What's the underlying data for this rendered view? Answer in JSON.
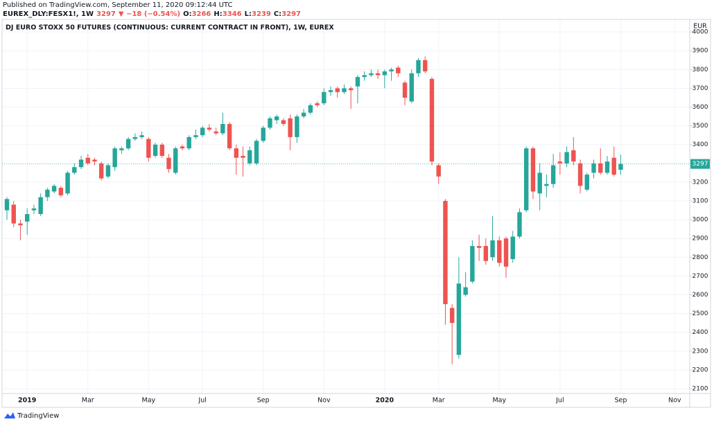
{
  "header": {
    "published": "Published on TradingView.com, September 11, 2020 09:12:44 UTC",
    "symbol": "EUREX_DLY:FESX1!, 1W",
    "last": 3297,
    "change_text": "▼ −18 (−0.54%)",
    "ohlc_labels": [
      "O:",
      "H:",
      "L:",
      "C:"
    ],
    "ohlc_values": [
      3266,
      3346,
      3239,
      3297
    ]
  },
  "chart_data": {
    "type": "candlestick",
    "title": "DJ EURO STOXX 50 FUTURES (CONTINUOUS: CURRENT CONTRACT IN FRONT), 1W, EUREX",
    "currency": "EUR",
    "last_price": 3297,
    "categories": [
      null,
      null,
      null,
      "2019",
      null,
      null,
      null,
      null,
      null,
      null,
      null,
      null,
      "Mar",
      null,
      null,
      null,
      null,
      null,
      null,
      null,
      null,
      "May",
      null,
      null,
      null,
      null,
      null,
      null,
      null,
      "Jul",
      null,
      null,
      null,
      null,
      null,
      null,
      null,
      null,
      "Sep",
      null,
      null,
      null,
      null,
      null,
      null,
      null,
      null,
      "Nov",
      null,
      null,
      null,
      null,
      null,
      null,
      null,
      null,
      "2020",
      null,
      null,
      null,
      null,
      null,
      null,
      null,
      "Mar",
      null,
      null,
      null,
      null,
      null,
      null,
      null,
      null,
      "May",
      null,
      null,
      null,
      null,
      null,
      null,
      null,
      null,
      "Jul",
      null,
      null,
      null,
      null,
      null,
      null,
      null,
      null,
      "Sep",
      null,
      null,
      null,
      null,
      null,
      null,
      null,
      "Nov"
    ],
    "open": [
      3050,
      3080,
      2980,
      2990,
      3050,
      3030,
      3120,
      3150,
      3170,
      3140,
      3250,
      3280,
      3330,
      3320,
      3300,
      3230,
      3280,
      3370,
      3380,
      3430,
      3440,
      3430,
      3340,
      3400,
      3330,
      3250,
      3390,
      3380,
      3440,
      3450,
      3490,
      3470,
      3460,
      3510,
      3380,
      3340,
      3300,
      3300,
      3420,
      3490,
      3530,
      3530,
      3540,
      3440,
      3550,
      3570,
      3620,
      3620,
      3680,
      3700,
      3680,
      3700,
      3710,
      3760,
      3770,
      3780,
      3770,
      3790,
      3810,
      3730,
      3630,
      3780,
      3850,
      3750,
      3290,
      3100,
      2530,
      2280,
      2600,
      2670,
      2860,
      2860,
      2800,
      2890,
      2900,
      2790,
      2910,
      3050,
      3380,
      3140,
      3180,
      3190,
      3310,
      3300,
      3370,
      3300,
      3160,
      3250,
      3300,
      3250,
      3330,
      3266,
      null,
      null,
      null,
      null,
      null,
      null,
      null,
      null
    ],
    "high": [
      3120,
      3100,
      3000,
      3060,
      3080,
      3140,
      3170,
      3190,
      3180,
      3260,
      3300,
      3340,
      3350,
      3330,
      3310,
      3300,
      3390,
      3390,
      3440,
      3460,
      3470,
      3440,
      3410,
      3410,
      3350,
      3390,
      3400,
      3450,
      3480,
      3500,
      3510,
      3490,
      3570,
      3520,
      3400,
      3390,
      3390,
      3430,
      3500,
      3550,
      3560,
      3540,
      3560,
      3560,
      3590,
      3620,
      3630,
      3700,
      3710,
      3710,
      3720,
      3710,
      3770,
      3790,
      3800,
      3800,
      3800,
      3810,
      3820,
      3740,
      3800,
      3860,
      3870,
      3760,
      3300,
      3110,
      2550,
      2800,
      2720,
      2890,
      2920,
      2900,
      3020,
      2910,
      2910,
      2940,
      3060,
      3390,
      3390,
      3300,
      3240,
      3350,
      3360,
      3390,
      3440,
      3320,
      3250,
      3320,
      3380,
      3340,
      3390,
      3346,
      null,
      null,
      null,
      null,
      null,
      null,
      null,
      null
    ],
    "low": [
      3000,
      2960,
      2890,
      2920,
      3030,
      3020,
      3100,
      3140,
      3120,
      3130,
      3240,
      3270,
      3290,
      3290,
      3210,
      3220,
      3260,
      3350,
      3370,
      3420,
      3430,
      3310,
      3330,
      3330,
      3250,
      3240,
      3370,
      3370,
      3430,
      3440,
      3470,
      3450,
      3450,
      3370,
      3240,
      3230,
      3290,
      3290,
      3410,
      3480,
      3510,
      3500,
      3370,
      3410,
      3540,
      3560,
      3600,
      3610,
      3660,
      3650,
      3670,
      3590,
      3620,
      3740,
      3760,
      3750,
      3700,
      3740,
      3760,
      3610,
      3620,
      3760,
      3780,
      3290,
      3190,
      2440,
      2230,
      2260,
      2590,
      2660,
      2780,
      2760,
      2780,
      2750,
      2690,
      2770,
      2900,
      3040,
      3110,
      3050,
      3120,
      3170,
      3240,
      3280,
      3290,
      3140,
      3150,
      3220,
      3240,
      3240,
      3230,
      3239,
      null,
      null,
      null,
      null,
      null,
      null,
      null,
      null
    ],
    "close": [
      3110,
      2980,
      2970,
      3030,
      3060,
      3120,
      3160,
      3180,
      3130,
      3250,
      3280,
      3320,
      3300,
      3310,
      3220,
      3290,
      3380,
      3380,
      3430,
      3440,
      3450,
      3330,
      3400,
      3340,
      3270,
      3380,
      3380,
      3440,
      3450,
      3490,
      3480,
      3460,
      3510,
      3380,
      3330,
      3330,
      3370,
      3420,
      3490,
      3540,
      3550,
      3510,
      3440,
      3550,
      3570,
      3610,
      3610,
      3680,
      3690,
      3680,
      3700,
      3690,
      3760,
      3770,
      3780,
      3770,
      3790,
      3800,
      3780,
      3650,
      3780,
      3850,
      3790,
      3310,
      3230,
      2550,
      2450,
      2660,
      2640,
      2860,
      2850,
      2780,
      2890,
      2770,
      2750,
      2910,
      3040,
      3380,
      3150,
      3250,
      3190,
      3290,
      3300,
      3360,
      3310,
      3180,
      3240,
      3300,
      3250,
      3310,
      3240,
      3297,
      null,
      null,
      null,
      null,
      null,
      null,
      null,
      null
    ],
    "up_color": "#26a69a",
    "down_color": "#ef5350",
    "ylim": [
      2074,
      4067
    ],
    "yticks": [
      2100,
      2200,
      2300,
      2400,
      2500,
      2600,
      2700,
      2800,
      2900,
      3000,
      3100,
      3200,
      3300,
      3400,
      3500,
      3600,
      3700,
      3800,
      3900,
      4000
    ],
    "grid": true
  },
  "footer": {
    "logo": "TradingView"
  }
}
